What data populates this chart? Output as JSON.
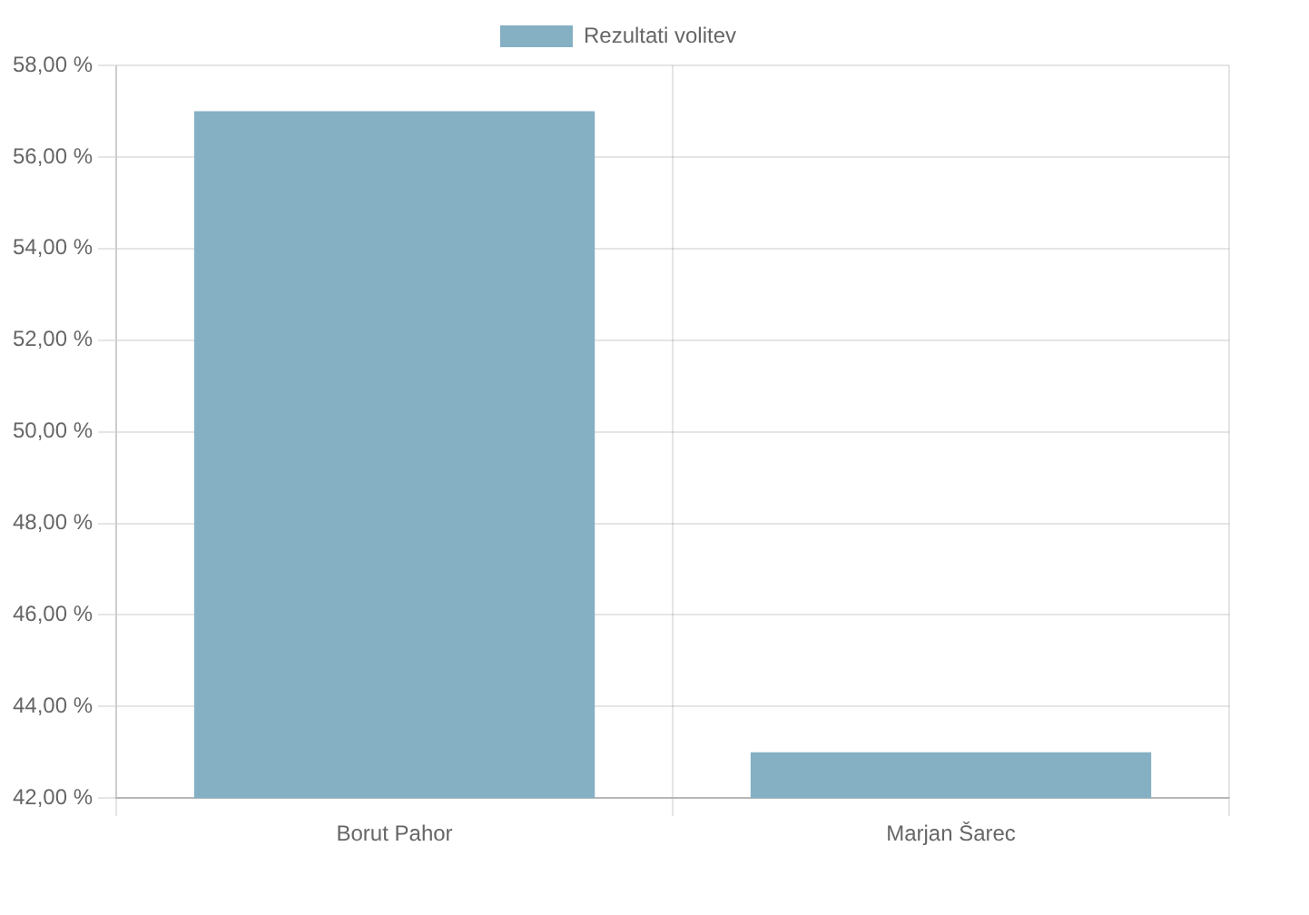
{
  "chart_data": {
    "type": "bar",
    "categories": [
      "Borut Pahor",
      "Marjan Šarec"
    ],
    "series": [
      {
        "name": "Rezultati volitev",
        "color": "#85b0c4",
        "values": [
          57.0,
          43.0
        ]
      }
    ],
    "ylim": [
      42,
      58
    ],
    "yticks": [
      {
        "value": 42,
        "label": "42,00 %"
      },
      {
        "value": 44,
        "label": "44,00 %"
      },
      {
        "value": 46,
        "label": "46,00 %"
      },
      {
        "value": 48,
        "label": "48,00 %"
      },
      {
        "value": 50,
        "label": "50,00 %"
      },
      {
        "value": 52,
        "label": "52,00 %"
      },
      {
        "value": 54,
        "label": "54,00 %"
      },
      {
        "value": 56,
        "label": "56,00 %"
      },
      {
        "value": 58,
        "label": "58,00 %"
      }
    ],
    "grid": true,
    "legend": "top"
  }
}
